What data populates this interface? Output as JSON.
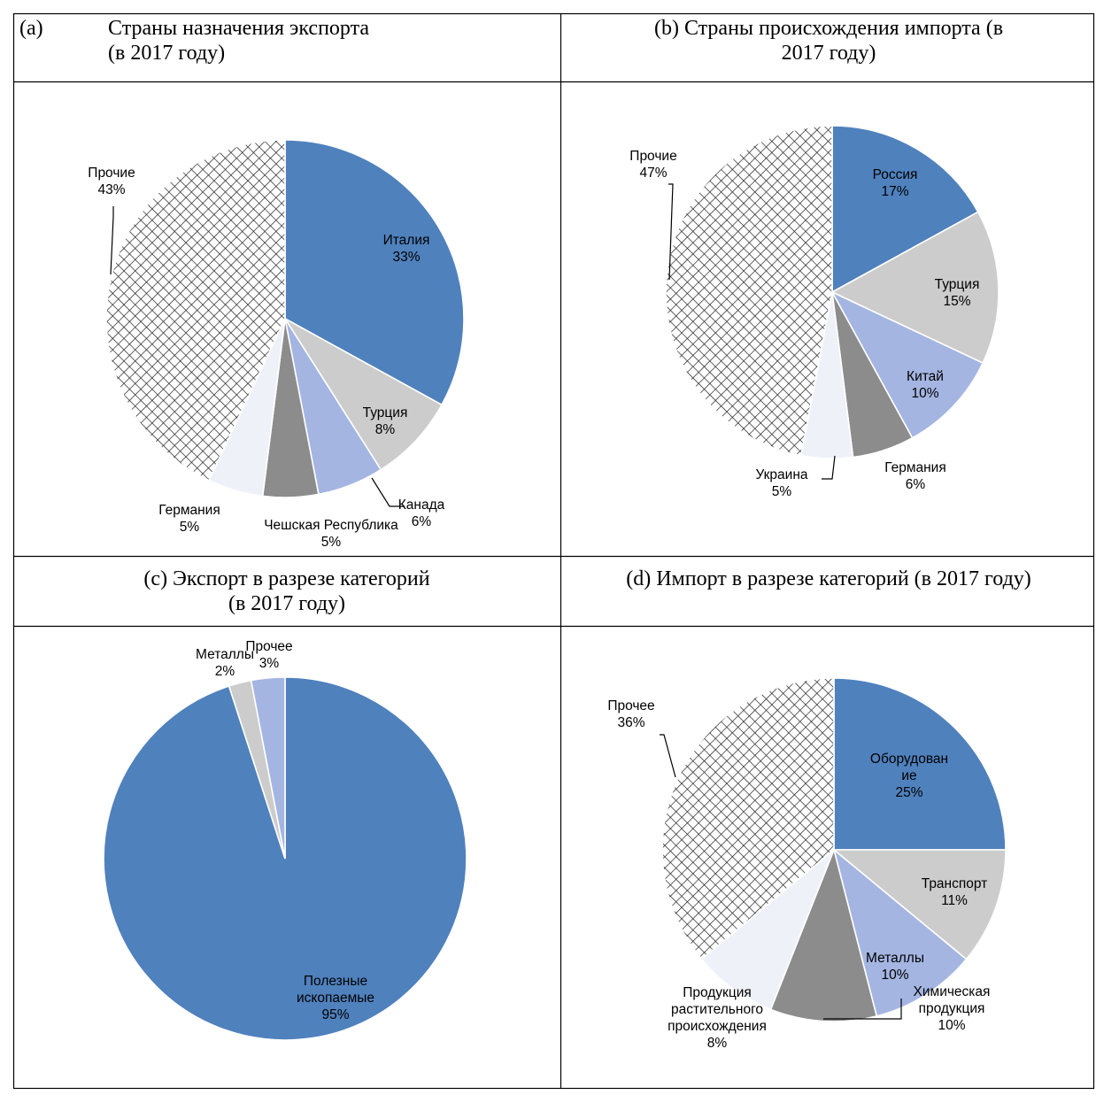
{
  "colors": {
    "blue": "#4f81bd",
    "light_gray": "#cccccc",
    "lavender": "#a4b5e2",
    "dark_gray": "#8c8c8c",
    "pale": "#eef1f8",
    "hatch": "crosshatch-pattern"
  },
  "chart_data": [
    {
      "type": "pie",
      "label": "(a)",
      "title_lines": [
        "Страны назначения экспорта",
        "(в 2017 году)"
      ],
      "slices": [
        {
          "name": "Италия",
          "value": 33,
          "label": "33%"
        },
        {
          "name": "Турция",
          "value": 8,
          "label": "8%"
        },
        {
          "name": "Канада",
          "value": 6,
          "label": "6%"
        },
        {
          "name": "Чешская Республика",
          "value": 5,
          "label": "5%"
        },
        {
          "name": "Германия",
          "value": 5,
          "label": "5%"
        },
        {
          "name": "Прочие",
          "value": 43,
          "label": "43%"
        }
      ]
    },
    {
      "type": "pie",
      "label": "(b)",
      "title_lines": [
        "(b) Страны происхождения импорта (в",
        "2017 году)"
      ],
      "slices": [
        {
          "name": "Россия",
          "value": 17,
          "label": "17%"
        },
        {
          "name": "Турция",
          "value": 15,
          "label": "15%"
        },
        {
          "name": "Китай",
          "value": 10,
          "label": "10%"
        },
        {
          "name": "Германия",
          "value": 6,
          "label": "6%"
        },
        {
          "name": "Украина",
          "value": 5,
          "label": "5%"
        },
        {
          "name": "Прочие",
          "value": 47,
          "label": "47%"
        }
      ]
    },
    {
      "type": "pie",
      "label": "(c)",
      "title_lines": [
        "(c) Экспорт в разрезе категорий",
        "(в 2017 году)"
      ],
      "slices": [
        {
          "name_lines": [
            "Полезные",
            "ископаемые"
          ],
          "value": 95,
          "label": "95%"
        },
        {
          "name": "Металлы",
          "value": 2,
          "label": "2%"
        },
        {
          "name": "Прочее",
          "value": 3,
          "label": "3%"
        }
      ]
    },
    {
      "type": "pie",
      "label": "(d)",
      "title_lines": [
        "(d) Импорт в разрезе категорий (в 2017 году)"
      ],
      "slices": [
        {
          "name_lines": [
            "Оборудован",
            "ие"
          ],
          "value": 25,
          "label": "25%"
        },
        {
          "name": "Транспорт",
          "value": 11,
          "label": "11%"
        },
        {
          "name": "Металлы",
          "value": 10,
          "label": "10%"
        },
        {
          "name_lines": [
            "Химическая",
            "продукция"
          ],
          "value": 10,
          "label": "10%"
        },
        {
          "name_lines": [
            "Продукция",
            "растительного",
            "происхождения"
          ],
          "value": 8,
          "label": "8%"
        },
        {
          "name": "Прочее",
          "value": 36,
          "label": "36%"
        }
      ]
    }
  ]
}
